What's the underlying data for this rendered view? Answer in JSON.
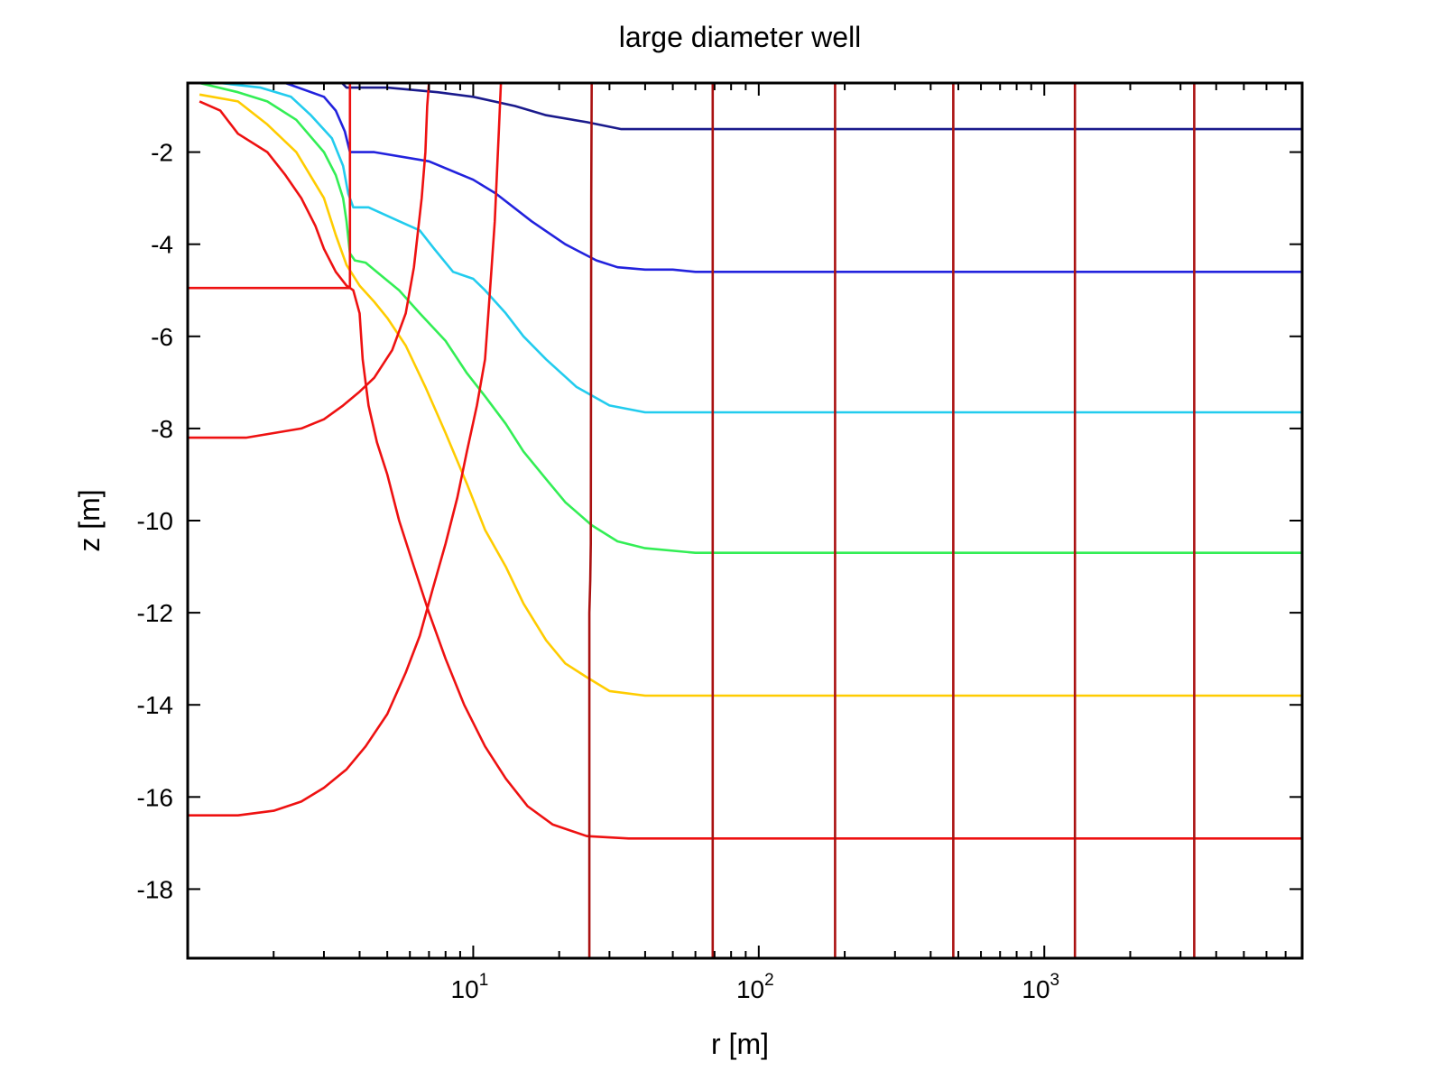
{
  "chart_data": {
    "type": "line",
    "title": "large diameter well",
    "xlabel": "r [m]",
    "ylabel": "z [m]",
    "xscale": "log",
    "xlim": [
      1,
      8000
    ],
    "ylim": [
      -19.5,
      -0.5
    ],
    "grid": false,
    "legend": "none",
    "x_ticks": [
      {
        "base": "10",
        "exp": "1",
        "value": 10
      },
      {
        "base": "10",
        "exp": "2",
        "value": 100
      },
      {
        "base": "10",
        "exp": "3",
        "value": 1000
      }
    ],
    "y_ticks": [
      {
        "label": "-2",
        "value": -2
      },
      {
        "label": "-4",
        "value": -4
      },
      {
        "label": "-6",
        "value": -6
      },
      {
        "label": "-8",
        "value": -8
      },
      {
        "label": "-10",
        "value": -10
      },
      {
        "label": "-12",
        "value": -12
      },
      {
        "label": "-14",
        "value": -14
      },
      {
        "label": "-16",
        "value": -16
      },
      {
        "label": "-18",
        "value": -18
      }
    ],
    "colors": {
      "navy": "#1a1a8c",
      "blue": "#2222dd",
      "cyan": "#22ccee",
      "green": "#33ee55",
      "yellow": "#ffcc00",
      "red": "#ee1111",
      "darkred": "#aa1111"
    },
    "series": [
      {
        "color": "navy",
        "points": [
          [
            3.47,
            -0.5
          ],
          [
            3.6,
            -0.6
          ],
          [
            4.0,
            -0.6
          ],
          [
            5.0,
            -0.6
          ],
          [
            7.5,
            -0.7
          ],
          [
            10,
            -0.8
          ],
          [
            14,
            -1.0
          ],
          [
            18,
            -1.2
          ],
          [
            25,
            -1.35
          ],
          [
            33,
            -1.5
          ],
          [
            60,
            -1.5
          ],
          [
            8000,
            -1.5
          ]
        ]
      },
      {
        "color": "blue",
        "points": [
          [
            2.2,
            -0.5
          ],
          [
            3.0,
            -0.8
          ],
          [
            3.3,
            -1.1
          ],
          [
            3.55,
            -1.55
          ],
          [
            3.7,
            -2.0
          ],
          [
            4.5,
            -2.0
          ],
          [
            7.0,
            -2.2
          ],
          [
            10,
            -2.6
          ],
          [
            12,
            -2.9
          ],
          [
            16,
            -3.5
          ],
          [
            21,
            -4.0
          ],
          [
            27,
            -4.35
          ],
          [
            32,
            -4.5
          ],
          [
            40,
            -4.55
          ],
          [
            50,
            -4.55
          ],
          [
            60,
            -4.6
          ],
          [
            8000,
            -4.6
          ]
        ]
      },
      {
        "color": "cyan",
        "points": [
          [
            1.3,
            -0.5
          ],
          [
            1.8,
            -0.6
          ],
          [
            2.3,
            -0.8
          ],
          [
            2.7,
            -1.2
          ],
          [
            3.2,
            -1.7
          ],
          [
            3.5,
            -2.3
          ],
          [
            3.65,
            -2.9
          ],
          [
            3.8,
            -3.2
          ],
          [
            4.3,
            -3.2
          ],
          [
            5.5,
            -3.5
          ],
          [
            6.5,
            -3.7
          ],
          [
            7.3,
            -4.1
          ],
          [
            8.5,
            -4.6
          ],
          [
            10,
            -4.75
          ],
          [
            11,
            -5.0
          ],
          [
            13,
            -5.5
          ],
          [
            15,
            -6.0
          ],
          [
            18,
            -6.5
          ],
          [
            23,
            -7.1
          ],
          [
            30,
            -7.5
          ],
          [
            40,
            -7.65
          ],
          [
            60,
            -7.65
          ],
          [
            8000,
            -7.65
          ]
        ]
      },
      {
        "color": "green",
        "points": [
          [
            1.1,
            -0.5
          ],
          [
            1.5,
            -0.7
          ],
          [
            1.9,
            -0.9
          ],
          [
            2.4,
            -1.3
          ],
          [
            3.0,
            -2.0
          ],
          [
            3.3,
            -2.5
          ],
          [
            3.5,
            -3.0
          ],
          [
            3.6,
            -3.5
          ],
          [
            3.7,
            -4.2
          ],
          [
            3.85,
            -4.35
          ],
          [
            4.2,
            -4.4
          ],
          [
            4.8,
            -4.7
          ],
          [
            5.5,
            -5.0
          ],
          [
            6.5,
            -5.5
          ],
          [
            8,
            -6.1
          ],
          [
            9.5,
            -6.8
          ],
          [
            11,
            -7.3
          ],
          [
            13,
            -7.9
          ],
          [
            15,
            -8.5
          ],
          [
            18,
            -9.1
          ],
          [
            21,
            -9.6
          ],
          [
            26,
            -10.1
          ],
          [
            32,
            -10.45
          ],
          [
            40,
            -10.6
          ],
          [
            60,
            -10.7
          ],
          [
            8000,
            -10.7
          ]
        ]
      },
      {
        "color": "yellow",
        "points": [
          [
            1.1,
            -0.75
          ],
          [
            1.5,
            -0.9
          ],
          [
            1.9,
            -1.4
          ],
          [
            2.4,
            -2.0
          ],
          [
            3.0,
            -3.0
          ],
          [
            3.3,
            -3.8
          ],
          [
            3.6,
            -4.45
          ],
          [
            4.0,
            -4.9
          ],
          [
            4.5,
            -5.25
          ],
          [
            5.0,
            -5.6
          ],
          [
            5.8,
            -6.2
          ],
          [
            6.8,
            -7.1
          ],
          [
            8,
            -8.1
          ],
          [
            9.5,
            -9.2
          ],
          [
            11,
            -10.2
          ],
          [
            13,
            -11.0
          ],
          [
            15,
            -11.8
          ],
          [
            18,
            -12.6
          ],
          [
            21,
            -13.1
          ],
          [
            25,
            -13.4
          ],
          [
            30,
            -13.7
          ],
          [
            40,
            -13.8
          ],
          [
            60,
            -13.8
          ],
          [
            8000,
            -13.8
          ]
        ]
      },
      {
        "color": "red",
        "points": [
          [
            1.1,
            -0.9
          ],
          [
            1.3,
            -1.1
          ],
          [
            1.5,
            -1.6
          ],
          [
            1.9,
            -2.0
          ],
          [
            2.2,
            -2.5
          ],
          [
            2.5,
            -3.0
          ],
          [
            2.8,
            -3.6
          ],
          [
            3.0,
            -4.1
          ],
          [
            3.3,
            -4.6
          ],
          [
            3.6,
            -4.9
          ],
          [
            3.8,
            -5.0
          ],
          [
            4.0,
            -5.5
          ],
          [
            4.1,
            -6.5
          ],
          [
            4.3,
            -7.5
          ],
          [
            4.6,
            -8.3
          ],
          [
            5.0,
            -9.0
          ],
          [
            5.5,
            -10.0
          ],
          [
            6.2,
            -11.0
          ],
          [
            7,
            -12.0
          ],
          [
            8,
            -13.0
          ],
          [
            9.3,
            -14.0
          ],
          [
            11,
            -14.9
          ],
          [
            13,
            -15.6
          ],
          [
            15.5,
            -16.2
          ],
          [
            19,
            -16.6
          ],
          [
            25,
            -16.85
          ],
          [
            35,
            -16.9
          ],
          [
            60,
            -16.9
          ],
          [
            8000,
            -16.9
          ]
        ]
      },
      {
        "color": "red",
        "points": [
          [
            1,
            -8.2
          ],
          [
            1.2,
            -8.2
          ],
          [
            1.6,
            -8.2
          ],
          [
            2.0,
            -8.1
          ],
          [
            2.5,
            -8.0
          ],
          [
            3.0,
            -7.8
          ],
          [
            3.5,
            -7.5
          ],
          [
            4.0,
            -7.2
          ],
          [
            4.5,
            -6.9
          ],
          [
            5.2,
            -6.3
          ],
          [
            5.8,
            -5.5
          ],
          [
            6.2,
            -4.5
          ],
          [
            6.6,
            -3.0
          ],
          [
            6.8,
            -2.0
          ],
          [
            6.9,
            -1.0
          ],
          [
            7.0,
            -0.5
          ]
        ]
      },
      {
        "color": "red",
        "points": [
          [
            1,
            -16.4
          ],
          [
            1.5,
            -16.4
          ],
          [
            2.0,
            -16.3
          ],
          [
            2.5,
            -16.1
          ],
          [
            3.0,
            -15.8
          ],
          [
            3.6,
            -15.4
          ],
          [
            4.2,
            -14.9
          ],
          [
            5.0,
            -14.2
          ],
          [
            5.8,
            -13.3
          ],
          [
            6.5,
            -12.5
          ],
          [
            7.2,
            -11.5
          ],
          [
            8,
            -10.5
          ],
          [
            8.8,
            -9.5
          ],
          [
            9.5,
            -8.5
          ],
          [
            10.3,
            -7.5
          ],
          [
            11,
            -6.5
          ],
          [
            11.3,
            -5.5
          ],
          [
            11.6,
            -4.5
          ],
          [
            11.9,
            -3.5
          ],
          [
            12.1,
            -2.5
          ],
          [
            12.3,
            -1.5
          ],
          [
            12.5,
            -0.5
          ]
        ]
      },
      {
        "color": "red",
        "points": [
          [
            1,
            -4.95
          ],
          [
            2,
            -4.95
          ],
          [
            3,
            -4.95
          ],
          [
            3.7,
            -4.95
          ],
          [
            3.7,
            -3.0
          ],
          [
            3.7,
            -0.5
          ]
        ]
      },
      {
        "color": "darkred",
        "points": [
          [
            25.5,
            -19.5
          ],
          [
            25.5,
            -12.0
          ],
          [
            25.7,
            -11.3
          ],
          [
            25.8,
            -10.5
          ],
          [
            25.9,
            -3.0
          ],
          [
            26,
            -0.5
          ]
        ]
      },
      {
        "color": "darkred",
        "points": [
          [
            69,
            -19.5
          ],
          [
            69,
            -0.5
          ]
        ]
      },
      {
        "color": "darkred",
        "points": [
          [
            185,
            -19.5
          ],
          [
            185,
            -0.5
          ]
        ]
      },
      {
        "color": "darkred",
        "points": [
          [
            480,
            -19.5
          ],
          [
            480,
            -0.5
          ]
        ]
      },
      {
        "color": "darkred",
        "points": [
          [
            1280,
            -19.5
          ],
          [
            1280,
            -0.5
          ]
        ]
      },
      {
        "color": "darkred",
        "points": [
          [
            3350,
            -19.5
          ],
          [
            3350,
            -0.5
          ]
        ]
      }
    ]
  }
}
